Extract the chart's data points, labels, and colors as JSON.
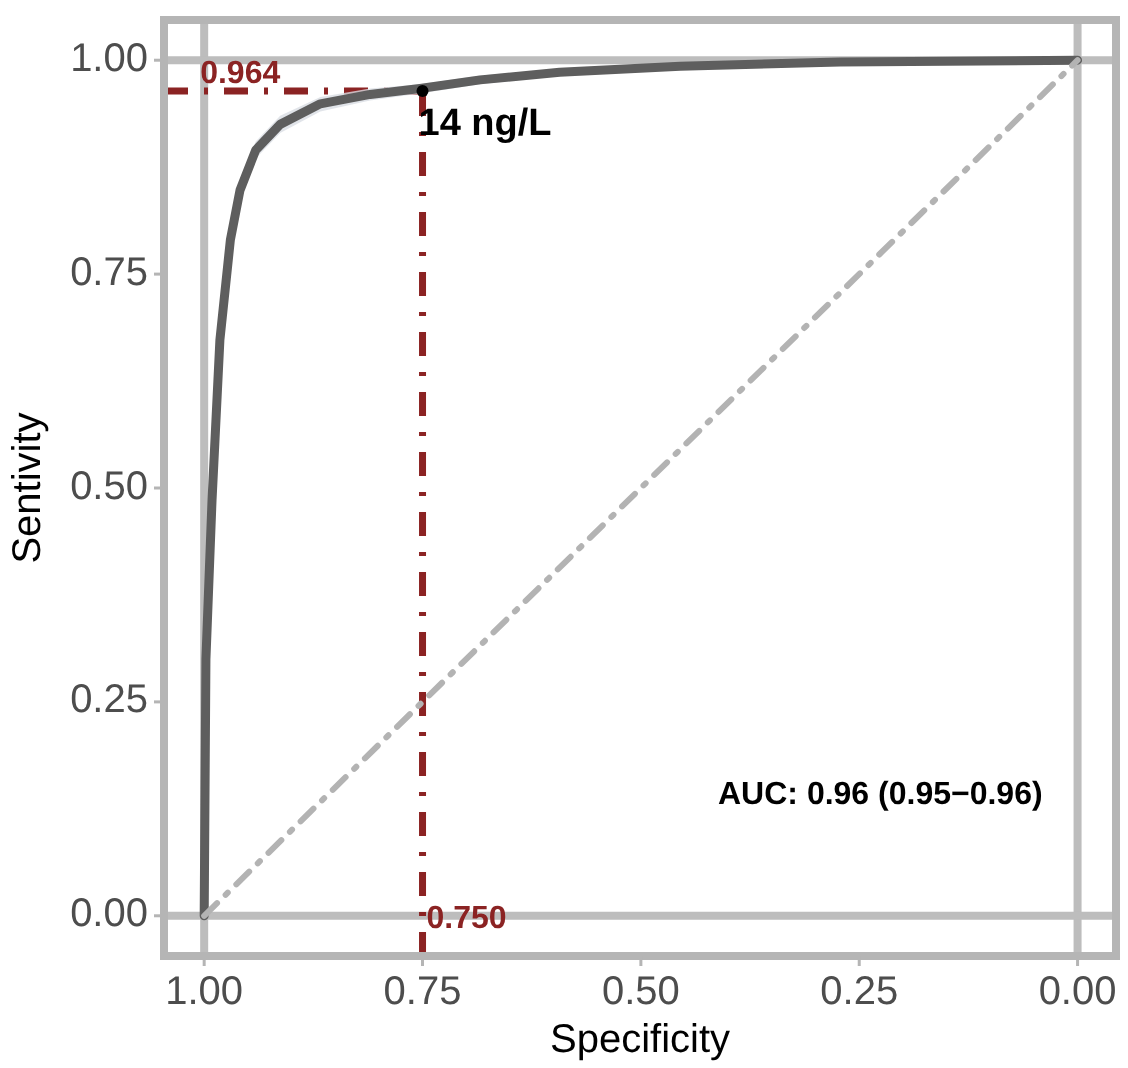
{
  "chart_data": {
    "type": "line",
    "xlabel": "Specificity",
    "ylabel": "Sentivity",
    "xlim": [
      1.046,
      -0.044
    ],
    "ylim": [
      -0.047,
      1.047
    ],
    "xticks": [
      {
        "value": 1,
        "label": "1.00"
      },
      {
        "value": 0.75,
        "label": "0.75"
      },
      {
        "value": 0.5,
        "label": "0.50"
      },
      {
        "value": 0.25,
        "label": "0.25"
      },
      {
        "value": 0,
        "label": "0.00"
      }
    ],
    "yticks": [
      {
        "value": 0,
        "label": "0.00"
      },
      {
        "value": 0.25,
        "label": "0.25"
      },
      {
        "value": 0.5,
        "label": "0.50"
      },
      {
        "value": 0.75,
        "label": "0.75"
      },
      {
        "value": 1,
        "label": "1.00"
      }
    ],
    "series": [
      {
        "color": "#5e5e5e",
        "line_style": "solid",
        "x": [
          1,
          0.998,
          0.991,
          0.982,
          0.97,
          0.959,
          0.941,
          0.913,
          0.867,
          0.81,
          0.753,
          0.684,
          0.593,
          0.455,
          0.272,
          0
        ],
        "values": [
          0,
          0.3,
          0.486,
          0.673,
          0.79,
          0.848,
          0.895,
          0.925,
          0.949,
          0.96,
          0.967,
          0.977,
          0.986,
          0.993,
          0.998,
          1
        ],
        "lower": [
          0,
          0.28,
          0.46,
          0.65,
          0.775,
          0.835,
          0.885,
          0.915,
          0.94,
          0.953,
          0.961,
          0.972,
          0.982,
          0.99,
          0.996,
          1
        ],
        "upper": [
          0,
          0.32,
          0.51,
          0.695,
          0.805,
          0.86,
          0.905,
          0.935,
          0.957,
          0.967,
          0.972,
          0.982,
          0.99,
          0.996,
          1,
          1
        ]
      },
      {
        "type": "line",
        "color": "#b3b3b3",
        "line_style": "dashed",
        "x": [
          1,
          0
        ],
        "values": [
          0,
          1
        ]
      },
      {
        "type": "scatter",
        "color": "#000000",
        "marker": "circle",
        "x": [
          0.75
        ],
        "values": [
          0.964
        ]
      }
    ],
    "ref_lines": [
      {
        "axis": "x",
        "value": 1,
        "color": "#bdbdbd"
      },
      {
        "axis": "x",
        "value": 0,
        "color": "#bdbdbd"
      },
      {
        "axis": "y",
        "value": 0,
        "color": "#bdbdbd"
      },
      {
        "axis": "y",
        "value": 1,
        "color": "#bdbdbd"
      },
      {
        "axis": "y",
        "value": 0.964,
        "label": "0.964",
        "color": "#8b2323",
        "line_style": "dashed"
      },
      {
        "axis": "x",
        "value": 0.75,
        "label": "0.750",
        "color": "#8b2323",
        "line_style": "dashed"
      }
    ],
    "annotations": [
      {
        "text": "14 ng/L",
        "x": 0.75,
        "y": 0.964
      },
      "AUC: 0.96 (0.95−0.96)"
    ]
  }
}
